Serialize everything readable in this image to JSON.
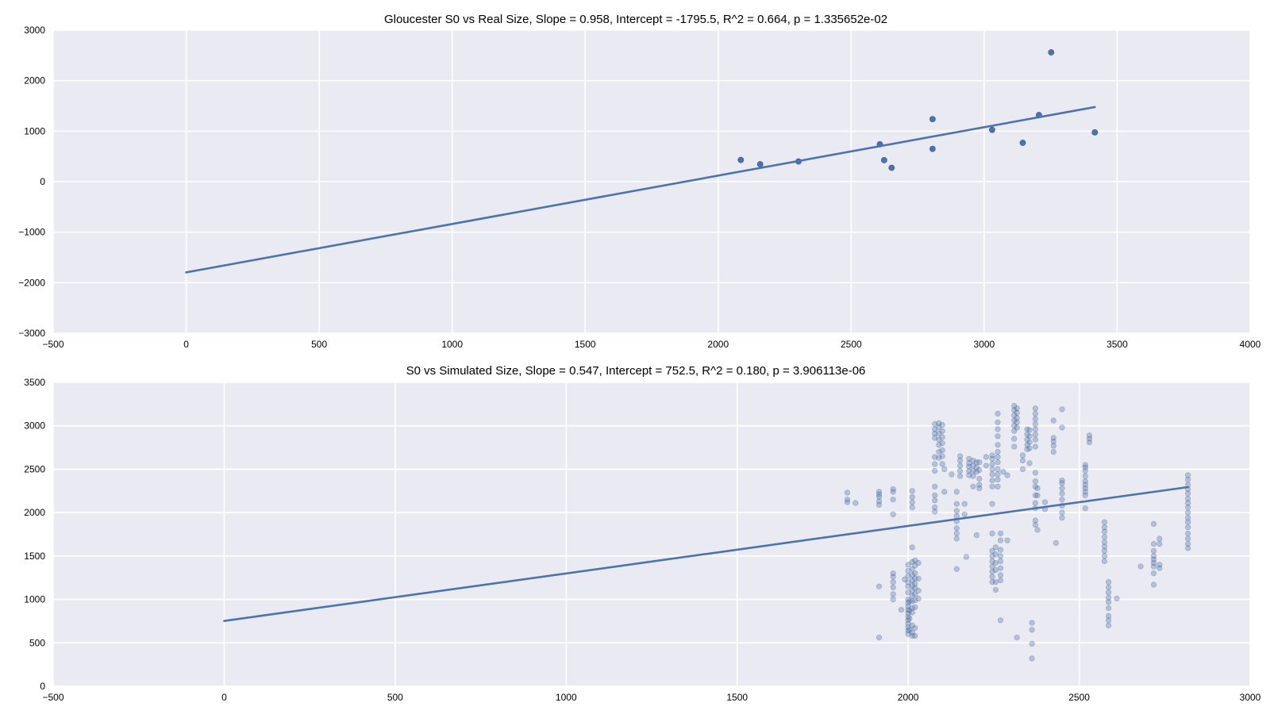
{
  "chart_data": [
    {
      "type": "scatter",
      "title": "Gloucester S0 vs Real Size, Slope = 0.958, Intercept = -1795.5, R^2 = 0.664, p = 1.335652e-02",
      "xlabel": "",
      "ylabel": "",
      "xlim": [
        -500,
        4000
      ],
      "ylim": [
        -3000,
        3000
      ],
      "xticks": [
        -500,
        0,
        500,
        1000,
        1500,
        2000,
        2500,
        3000,
        3500,
        4000
      ],
      "yticks": [
        -3000,
        -2000,
        -1000,
        0,
        1000,
        2000,
        3000
      ],
      "xtick_labels": [
        "−500",
        "0",
        "500",
        "1000",
        "1500",
        "2000",
        "2500",
        "3000",
        "3500",
        "4000"
      ],
      "ytick_labels": [
        "−3000",
        "−2000",
        "−1000",
        "0",
        "1000",
        "2000",
        "3000"
      ],
      "grid": true,
      "background_color": "#eaeaf2",
      "series_color": "#4c72b0",
      "point_opacity": 1.0,
      "points": [
        [
          2085,
          430
        ],
        [
          2158,
          345
        ],
        [
          2302,
          400
        ],
        [
          2608,
          740
        ],
        [
          2624,
          425
        ],
        [
          2652,
          275
        ],
        [
          2806,
          1240
        ],
        [
          2806,
          650
        ],
        [
          3030,
          1025
        ],
        [
          3145,
          770
        ],
        [
          3206,
          1320
        ],
        [
          3252,
          2560
        ],
        [
          3416,
          975
        ]
      ],
      "fit_line": {
        "slope": 0.958,
        "intercept": -1795.5,
        "x_range": [
          0,
          3416
        ]
      }
    },
    {
      "type": "scatter",
      "title": "S0 vs Simulated Size, Slope = 0.547, Intercept = 752.5, R^2 = 0.180, p = 3.906113e-06",
      "xlabel": "",
      "ylabel": "",
      "xlim": [
        -500,
        3000
      ],
      "ylim": [
        0,
        3500
      ],
      "xticks": [
        -500,
        0,
        500,
        1000,
        1500,
        2000,
        2500,
        3000
      ],
      "yticks": [
        0,
        500,
        1000,
        1500,
        2000,
        2500,
        3000,
        3500
      ],
      "xtick_labels": [
        "−500",
        "0",
        "500",
        "1000",
        "1500",
        "2000",
        "2500",
        "3000"
      ],
      "ytick_labels": [
        "0",
        "500",
        "1000",
        "1500",
        "2000",
        "2500",
        "3000",
        "3500"
      ],
      "grid": true,
      "background_color": "#eaeaf2",
      "series_color": "#4c72b0",
      "point_opacity": 0.35,
      "points": [
        [
          1822,
          2230
        ],
        [
          1822,
          2150
        ],
        [
          1822,
          2120
        ],
        [
          1846,
          2110
        ],
        [
          1915,
          2240
        ],
        [
          1915,
          2210
        ],
        [
          1915,
          2180
        ],
        [
          1915,
          2130
        ],
        [
          1915,
          2090
        ],
        [
          1915,
          1150
        ],
        [
          1915,
          560
        ],
        [
          1956,
          2270
        ],
        [
          1956,
          2240
        ],
        [
          1956,
          2150
        ],
        [
          1956,
          1980
        ],
        [
          1956,
          1300
        ],
        [
          1956,
          1260
        ],
        [
          1956,
          1200
        ],
        [
          1956,
          1140
        ],
        [
          1956,
          1060
        ],
        [
          1956,
          1000
        ],
        [
          1980,
          880
        ],
        [
          1990,
          1230
        ],
        [
          2000,
          1400
        ],
        [
          2000,
          1330
        ],
        [
          2000,
          1270
        ],
        [
          2000,
          1200
        ],
        [
          2000,
          1150
        ],
        [
          2000,
          1080
        ],
        [
          2000,
          1000
        ],
        [
          2000,
          960
        ],
        [
          2000,
          920
        ],
        [
          2000,
          880
        ],
        [
          2000,
          840
        ],
        [
          2000,
          800
        ],
        [
          2000,
          760
        ],
        [
          2000,
          720
        ],
        [
          2000,
          680
        ],
        [
          2000,
          640
        ],
        [
          2000,
          600
        ],
        [
          2004,
          980
        ],
        [
          2004,
          870
        ],
        [
          2004,
          780
        ],
        [
          2004,
          650
        ],
        [
          2012,
          2250
        ],
        [
          2012,
          2180
        ],
        [
          2012,
          2120
        ],
        [
          2012,
          2060
        ],
        [
          2012,
          1600
        ],
        [
          2012,
          1430
        ],
        [
          2012,
          1350
        ],
        [
          2012,
          1280
        ],
        [
          2012,
          1220
        ],
        [
          2012,
          1160
        ],
        [
          2012,
          1100
        ],
        [
          2012,
          1040
        ],
        [
          2012,
          980
        ],
        [
          2012,
          900
        ],
        [
          2012,
          850
        ],
        [
          2012,
          700
        ],
        [
          2012,
          620
        ],
        [
          2012,
          580
        ],
        [
          2020,
          1450
        ],
        [
          2020,
          1390
        ],
        [
          2020,
          1300
        ],
        [
          2020,
          1240
        ],
        [
          2020,
          1180
        ],
        [
          2020,
          1130
        ],
        [
          2020,
          1060
        ],
        [
          2020,
          990
        ],
        [
          2020,
          910
        ],
        [
          2020,
          670
        ],
        [
          2020,
          580
        ],
        [
          2030,
          1420
        ],
        [
          2030,
          1240
        ],
        [
          2030,
          1100
        ],
        [
          2030,
          1010
        ],
        [
          2078,
          3020
        ],
        [
          2078,
          2960
        ],
        [
          2078,
          2910
        ],
        [
          2078,
          2860
        ],
        [
          2078,
          2640
        ],
        [
          2078,
          2560
        ],
        [
          2078,
          2480
        ],
        [
          2078,
          2300
        ],
        [
          2078,
          2200
        ],
        [
          2078,
          2140
        ],
        [
          2078,
          2060
        ],
        [
          2078,
          2010
        ],
        [
          2090,
          3030
        ],
        [
          2090,
          2980
        ],
        [
          2090,
          2910
        ],
        [
          2090,
          2840
        ],
        [
          2090,
          2780
        ],
        [
          2090,
          2700
        ],
        [
          2090,
          2630
        ],
        [
          2100,
          3010
        ],
        [
          2100,
          2940
        ],
        [
          2100,
          2870
        ],
        [
          2100,
          2800
        ],
        [
          2100,
          2720
        ],
        [
          2100,
          2650
        ],
        [
          2100,
          2560
        ],
        [
          2106,
          2500
        ],
        [
          2106,
          2240
        ],
        [
          2127,
          2440
        ],
        [
          2142,
          2240
        ],
        [
          2142,
          2100
        ],
        [
          2142,
          2020
        ],
        [
          2142,
          1960
        ],
        [
          2142,
          1900
        ],
        [
          2142,
          1820
        ],
        [
          2142,
          1760
        ],
        [
          2142,
          1700
        ],
        [
          2142,
          1350
        ],
        [
          2152,
          2650
        ],
        [
          2152,
          2600
        ],
        [
          2152,
          2540
        ],
        [
          2152,
          2480
        ],
        [
          2152,
          2420
        ],
        [
          2165,
          2100
        ],
        [
          2165,
          1980
        ],
        [
          2170,
          1490
        ],
        [
          2178,
          2620
        ],
        [
          2178,
          2570
        ],
        [
          2178,
          2530
        ],
        [
          2178,
          2480
        ],
        [
          2178,
          2430
        ],
        [
          2190,
          2600
        ],
        [
          2190,
          2540
        ],
        [
          2190,
          2480
        ],
        [
          2190,
          2420
        ],
        [
          2190,
          2300
        ],
        [
          2200,
          2580
        ],
        [
          2200,
          2520
        ],
        [
          2200,
          2470
        ],
        [
          2200,
          1740
        ],
        [
          2208,
          2580
        ],
        [
          2208,
          2490
        ],
        [
          2208,
          2390
        ],
        [
          2208,
          2320
        ],
        [
          2208,
          2280
        ],
        [
          2228,
          2640
        ],
        [
          2228,
          2540
        ],
        [
          2246,
          2660
        ],
        [
          2246,
          2620
        ],
        [
          2246,
          2560
        ],
        [
          2246,
          2500
        ],
        [
          2246,
          2440
        ],
        [
          2246,
          2370
        ],
        [
          2246,
          2300
        ],
        [
          2246,
          2100
        ],
        [
          2246,
          1760
        ],
        [
          2246,
          1560
        ],
        [
          2246,
          1500
        ],
        [
          2246,
          1440
        ],
        [
          2246,
          1380
        ],
        [
          2246,
          1320
        ],
        [
          2246,
          1260
        ],
        [
          2246,
          1200
        ],
        [
          2256,
          1600
        ],
        [
          2256,
          1520
        ],
        [
          2256,
          1420
        ],
        [
          2256,
          1340
        ],
        [
          2256,
          1200
        ],
        [
          2256,
          1110
        ],
        [
          2262,
          3140
        ],
        [
          2262,
          3040
        ],
        [
          2262,
          2960
        ],
        [
          2262,
          2880
        ],
        [
          2262,
          2780
        ],
        [
          2262,
          2700
        ],
        [
          2262,
          2640
        ],
        [
          2262,
          2580
        ],
        [
          2262,
          2500
        ],
        [
          2262,
          2440
        ],
        [
          2262,
          2380
        ],
        [
          2262,
          2300
        ],
        [
          2270,
          1760
        ],
        [
          2270,
          1680
        ],
        [
          2270,
          1570
        ],
        [
          2270,
          1500
        ],
        [
          2270,
          1440
        ],
        [
          2270,
          1360
        ],
        [
          2270,
          1280
        ],
        [
          2270,
          1220
        ],
        [
          2270,
          760
        ],
        [
          2278,
          2470
        ],
        [
          2290,
          2430
        ],
        [
          2290,
          1680
        ],
        [
          2310,
          3230
        ],
        [
          2310,
          3180
        ],
        [
          2310,
          3120
        ],
        [
          2310,
          3060
        ],
        [
          2310,
          3000
        ],
        [
          2310,
          2940
        ],
        [
          2310,
          2850
        ],
        [
          2310,
          2760
        ],
        [
          2318,
          3200
        ],
        [
          2318,
          3150
        ],
        [
          2318,
          3090
        ],
        [
          2318,
          3040
        ],
        [
          2318,
          2980
        ],
        [
          2318,
          560
        ],
        [
          2335,
          2660
        ],
        [
          2335,
          2600
        ],
        [
          2335,
          2500
        ],
        [
          2348,
          2960
        ],
        [
          2348,
          2900
        ],
        [
          2348,
          2840
        ],
        [
          2348,
          2780
        ],
        [
          2348,
          2730
        ],
        [
          2355,
          2950
        ],
        [
          2355,
          2880
        ],
        [
          2355,
          2810
        ],
        [
          2355,
          2740
        ],
        [
          2355,
          2570
        ],
        [
          2362,
          730
        ],
        [
          2362,
          650
        ],
        [
          2362,
          490
        ],
        [
          2362,
          320
        ],
        [
          2372,
          3200
        ],
        [
          2372,
          3140
        ],
        [
          2372,
          3080
        ],
        [
          2372,
          3020
        ],
        [
          2372,
          2960
        ],
        [
          2372,
          2900
        ],
        [
          2372,
          2840
        ],
        [
          2372,
          2760
        ],
        [
          2372,
          2460
        ],
        [
          2372,
          2360
        ],
        [
          2372,
          2300
        ],
        [
          2372,
          2200
        ],
        [
          2372,
          2110
        ],
        [
          2372,
          2050
        ],
        [
          2372,
          1910
        ],
        [
          2372,
          1860
        ],
        [
          2378,
          2280
        ],
        [
          2378,
          2200
        ],
        [
          2378,
          1800
        ],
        [
          2400,
          2120
        ],
        [
          2400,
          2040
        ],
        [
          2425,
          3060
        ],
        [
          2425,
          2860
        ],
        [
          2425,
          2820
        ],
        [
          2425,
          2770
        ],
        [
          2425,
          2700
        ],
        [
          2432,
          1650
        ],
        [
          2450,
          3190
        ],
        [
          2450,
          2980
        ],
        [
          2450,
          2370
        ],
        [
          2450,
          2340
        ],
        [
          2450,
          2280
        ],
        [
          2450,
          2220
        ],
        [
          2450,
          2150
        ],
        [
          2450,
          2080
        ],
        [
          2450,
          2000
        ],
        [
          2450,
          1940
        ],
        [
          2518,
          2550
        ],
        [
          2518,
          2520
        ],
        [
          2518,
          2480
        ],
        [
          2518,
          2420
        ],
        [
          2518,
          2360
        ],
        [
          2518,
          2320
        ],
        [
          2518,
          2280
        ],
        [
          2518,
          2240
        ],
        [
          2518,
          2200
        ],
        [
          2518,
          2050
        ],
        [
          2530,
          2890
        ],
        [
          2530,
          2850
        ],
        [
          2530,
          2810
        ],
        [
          2574,
          1890
        ],
        [
          2574,
          1830
        ],
        [
          2574,
          1780
        ],
        [
          2574,
          1720
        ],
        [
          2574,
          1660
        ],
        [
          2574,
          1610
        ],
        [
          2574,
          1560
        ],
        [
          2574,
          1500
        ],
        [
          2574,
          1440
        ],
        [
          2586,
          1200
        ],
        [
          2586,
          1140
        ],
        [
          2586,
          1080
        ],
        [
          2586,
          1020
        ],
        [
          2586,
          970
        ],
        [
          2586,
          900
        ],
        [
          2586,
          810
        ],
        [
          2586,
          760
        ],
        [
          2586,
          700
        ],
        [
          2610,
          1010
        ],
        [
          2680,
          1380
        ],
        [
          2718,
          1870
        ],
        [
          2718,
          1640
        ],
        [
          2718,
          1560
        ],
        [
          2718,
          1500
        ],
        [
          2718,
          1460
        ],
        [
          2718,
          1420
        ],
        [
          2718,
          1380
        ],
        [
          2718,
          1300
        ],
        [
          2718,
          1170
        ],
        [
          2735,
          1700
        ],
        [
          2735,
          1640
        ],
        [
          2735,
          1400
        ],
        [
          2735,
          1360
        ],
        [
          2818,
          2430
        ],
        [
          2818,
          2380
        ],
        [
          2818,
          2320
        ],
        [
          2818,
          2270
        ],
        [
          2818,
          2220
        ],
        [
          2818,
          2160
        ],
        [
          2818,
          2110
        ],
        [
          2818,
          2060
        ],
        [
          2818,
          2000
        ],
        [
          2818,
          1940
        ],
        [
          2818,
          1890
        ],
        [
          2818,
          1830
        ],
        [
          2818,
          1760
        ],
        [
          2818,
          1700
        ],
        [
          2818,
          1640
        ],
        [
          2818,
          1590
        ]
      ],
      "fit_line": {
        "slope": 0.547,
        "intercept": 752.5,
        "x_range": [
          0,
          2818
        ]
      }
    }
  ]
}
